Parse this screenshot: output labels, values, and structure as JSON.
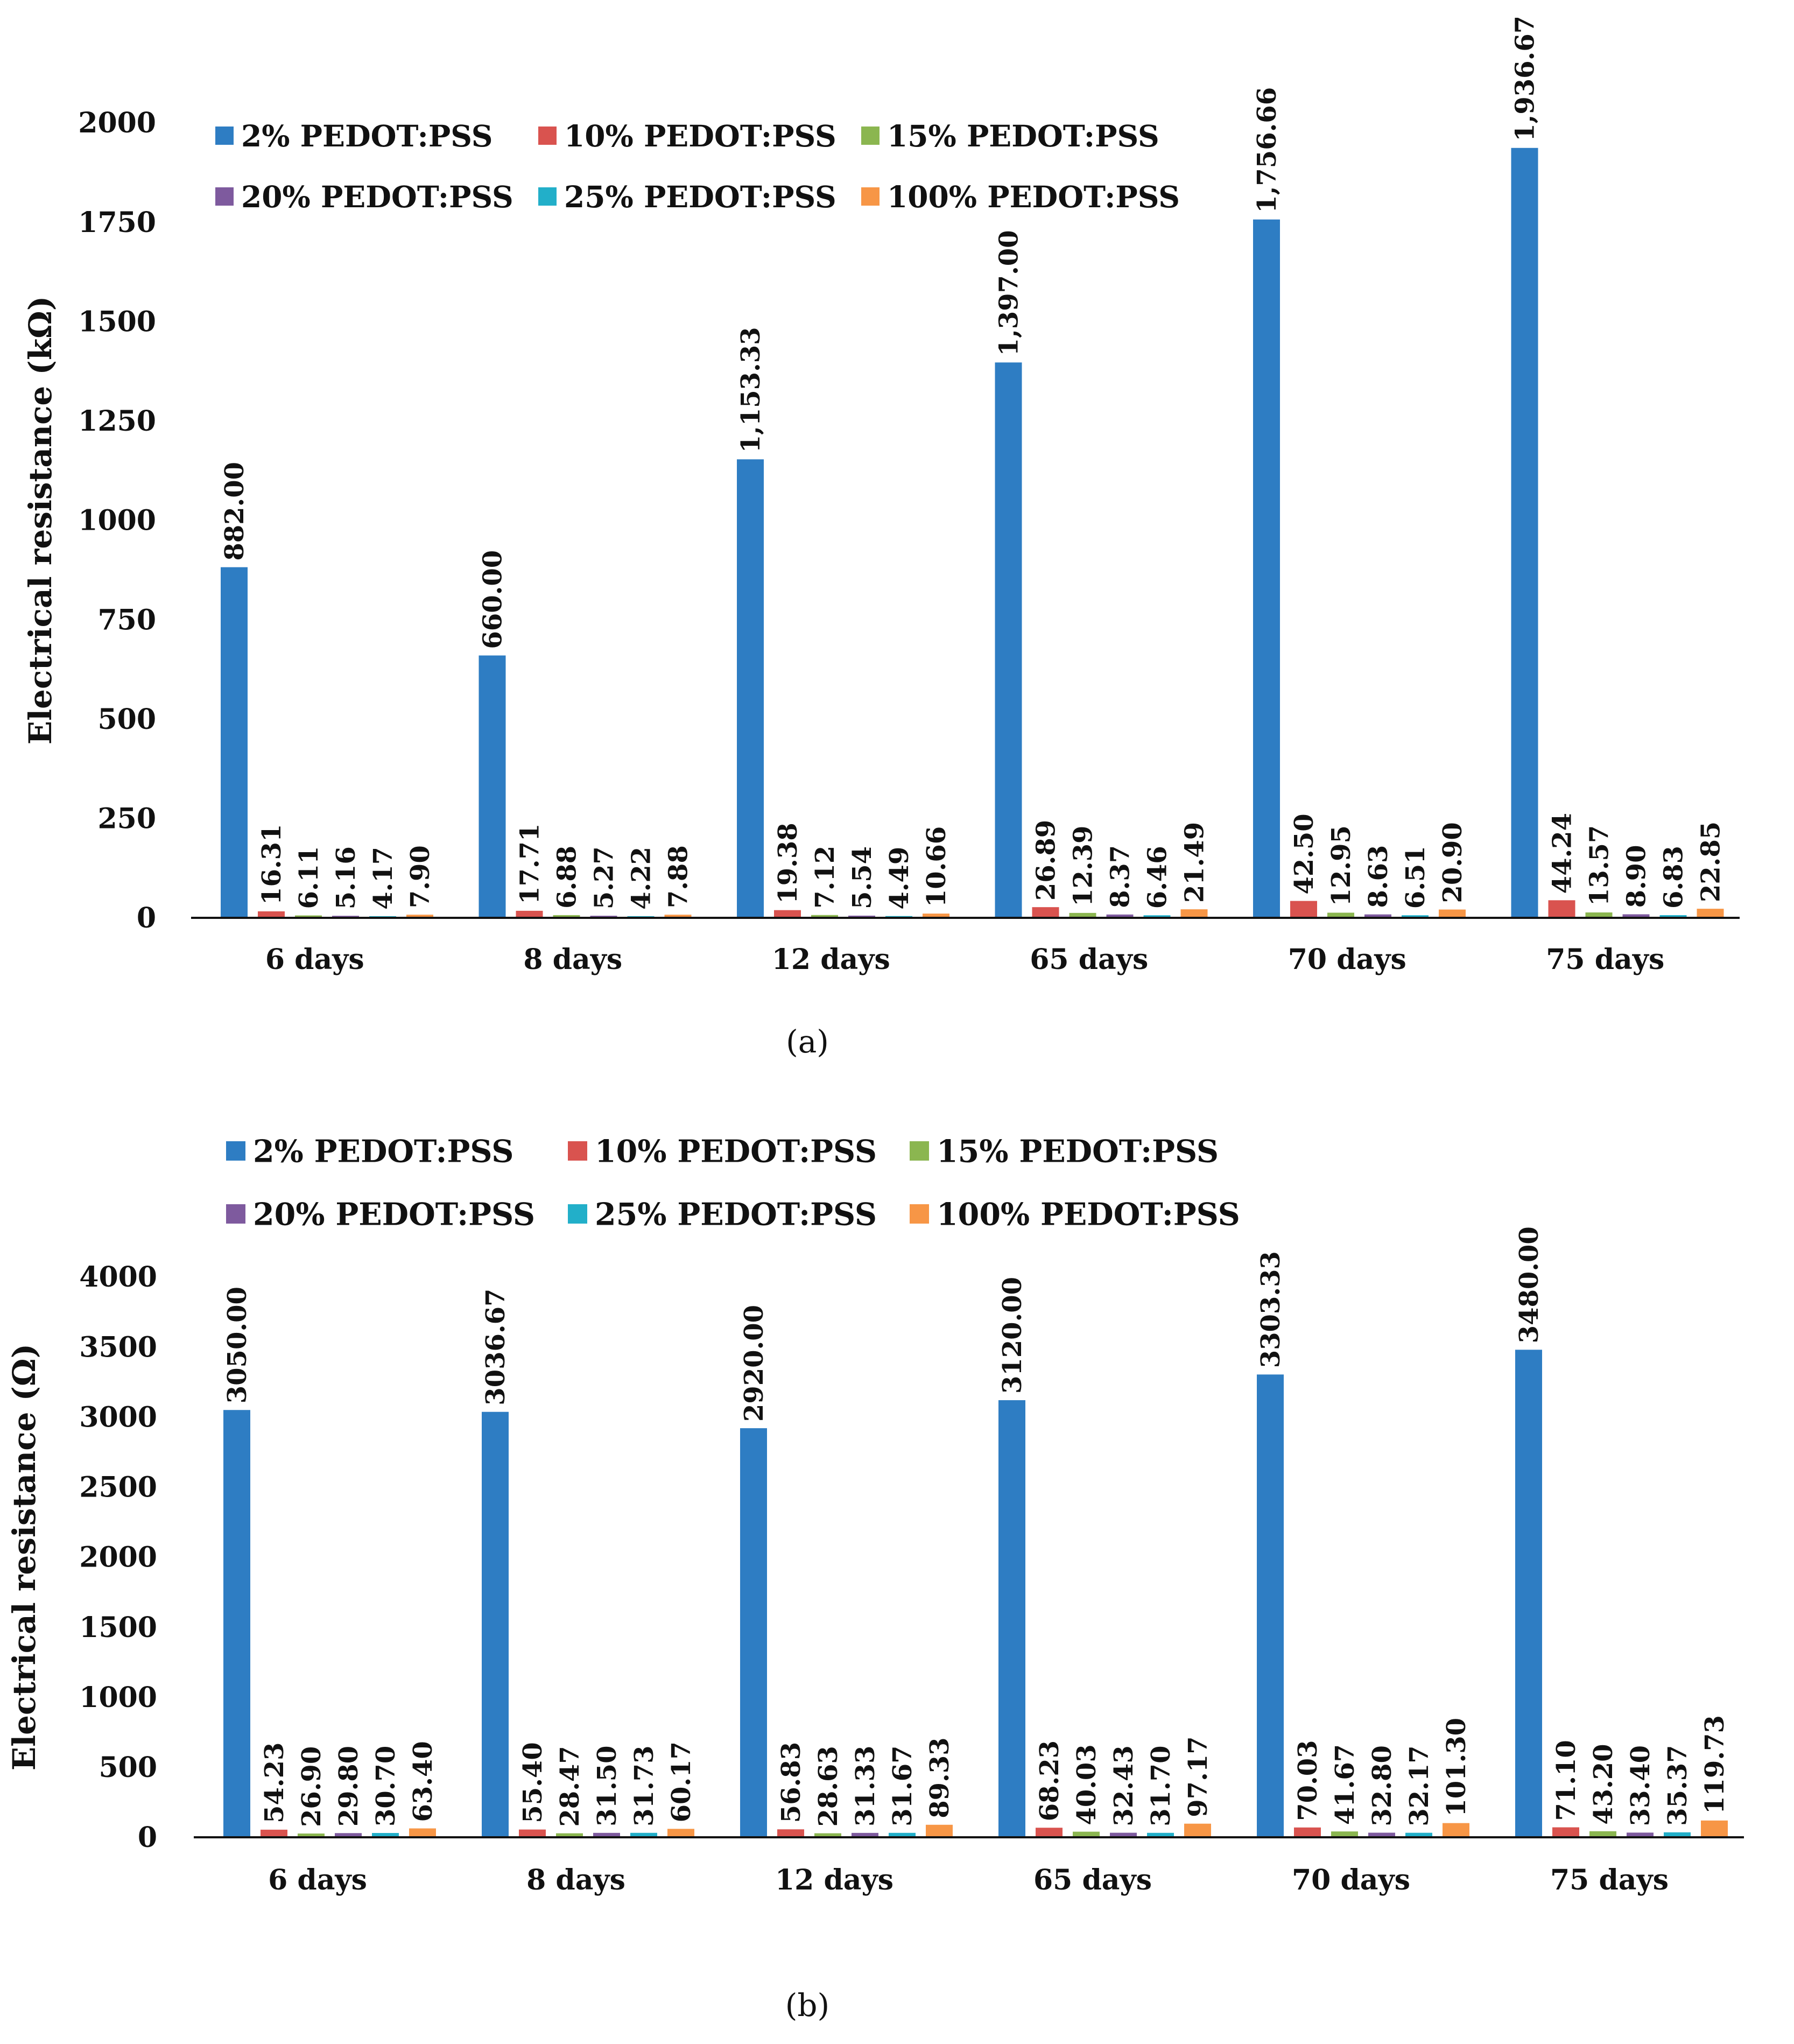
{
  "chart_data": [
    {
      "type": "bar",
      "caption": "(a)",
      "ylabel": "Electrical resistance (kΩ)",
      "xlabel": "",
      "ylim": [
        0,
        2000
      ],
      "yticks": [
        "0",
        "250",
        "500",
        "750",
        "1000",
        "1250",
        "1500",
        "1750",
        "2000"
      ],
      "ytick_values": [
        0,
        250,
        500,
        750,
        1000,
        1250,
        1500,
        1750,
        2000
      ],
      "legend_position": "top-left",
      "categories": [
        "6 days",
        "8 days",
        "12 days",
        "65 days",
        "70 days",
        "75 days"
      ],
      "series": [
        {
          "name": "2% PEDOT:PSS",
          "color": "#2E7DC3",
          "values": [
            882.0,
            660.0,
            1153.33,
            1397.0,
            1756.66,
            1936.67
          ],
          "labels": [
            "882.00",
            "660.00",
            "1,153.33",
            "1,397.00",
            "1,756.66",
            "1,936.67"
          ]
        },
        {
          "name": "10% PEDOT:PSS",
          "color": "#D9534F",
          "values": [
            16.31,
            17.71,
            19.38,
            26.89,
            42.5,
            44.24
          ],
          "labels": [
            "16.31",
            "17.71",
            "19.38",
            "26.89",
            "42.50",
            "44.24"
          ]
        },
        {
          "name": "15% PEDOT:PSS",
          "color": "#8BB650",
          "values": [
            6.11,
            6.88,
            7.12,
            12.39,
            12.95,
            13.57
          ],
          "labels": [
            "6.11",
            "6.88",
            "7.12",
            "12.39",
            "12.95",
            "13.57"
          ]
        },
        {
          "name": "20% PEDOT:PSS",
          "color": "#7E5A9E",
          "values": [
            5.16,
            5.27,
            5.54,
            8.37,
            8.63,
            8.9
          ],
          "labels": [
            "5.16",
            "5.27",
            "5.54",
            "8.37",
            "8.63",
            "8.90"
          ]
        },
        {
          "name": "25% PEDOT:PSS",
          "color": "#22AFC9",
          "values": [
            4.17,
            4.22,
            4.49,
            6.46,
            6.51,
            6.83
          ],
          "labels": [
            "4.17",
            "4.22",
            "4.49",
            "6.46",
            "6.51",
            "6.83"
          ]
        },
        {
          "name": "100% PEDOT:PSS",
          "color": "#F79646",
          "values": [
            7.9,
            7.88,
            10.66,
            21.49,
            20.9,
            22.85
          ],
          "labels": [
            "7.90",
            "7.88",
            "10.66",
            "21.49",
            "20.90",
            "22.85"
          ]
        }
      ]
    },
    {
      "type": "bar",
      "caption": "(b)",
      "ylabel": "Electrical resistance (Ω)",
      "xlabel": "",
      "ylim": [
        0,
        4000
      ],
      "yticks": [
        "0",
        "500",
        "1000",
        "1500",
        "2000",
        "2500",
        "3000",
        "3500",
        "4000"
      ],
      "ytick_values": [
        0,
        500,
        1000,
        1500,
        2000,
        2500,
        3000,
        3500,
        4000
      ],
      "legend_position": "top",
      "categories": [
        "6 days",
        "8 days",
        "12 days",
        "65 days",
        "70 days",
        "75 days"
      ],
      "series": [
        {
          "name": "2% PEDOT:PSS",
          "color": "#2E7DC3",
          "values": [
            3050.0,
            3036.67,
            2920.0,
            3120.0,
            3303.33,
            3480.0
          ],
          "labels": [
            "3050.00",
            "3036.67",
            "2920.00",
            "3120.00",
            "3303.33",
            "3480.00"
          ]
        },
        {
          "name": "10% PEDOT:PSS",
          "color": "#D9534F",
          "values": [
            54.23,
            55.4,
            56.83,
            68.23,
            70.03,
            71.1
          ],
          "labels": [
            "54.23",
            "55.40",
            "56.83",
            "68.23",
            "70.03",
            "71.10"
          ]
        },
        {
          "name": "15% PEDOT:PSS",
          "color": "#8BB650",
          "values": [
            26.9,
            28.47,
            28.63,
            40.03,
            41.67,
            43.2
          ],
          "labels": [
            "26.90",
            "28.47",
            "28.63",
            "40.03",
            "41.67",
            "43.20"
          ]
        },
        {
          "name": "20% PEDOT:PSS",
          "color": "#7E5A9E",
          "values": [
            29.8,
            31.5,
            31.33,
            32.43,
            32.8,
            33.4
          ],
          "labels": [
            "29.80",
            "31.50",
            "31.33",
            "32.43",
            "32.80",
            "33.40"
          ]
        },
        {
          "name": "25% PEDOT:PSS",
          "color": "#22AFC9",
          "values": [
            30.7,
            31.73,
            31.67,
            31.7,
            32.17,
            35.37
          ],
          "labels": [
            "30.70",
            "31.73",
            "31.67",
            "31.70",
            "32.17",
            "35.37"
          ]
        },
        {
          "name": "100% PEDOT:PSS",
          "color": "#F79646",
          "values": [
            63.4,
            60.17,
            89.33,
            97.17,
            101.3,
            119.73
          ],
          "labels": [
            "63.40",
            "60.17",
            "89.33",
            "97.17",
            "101.30",
            "119.73"
          ]
        }
      ]
    }
  ]
}
